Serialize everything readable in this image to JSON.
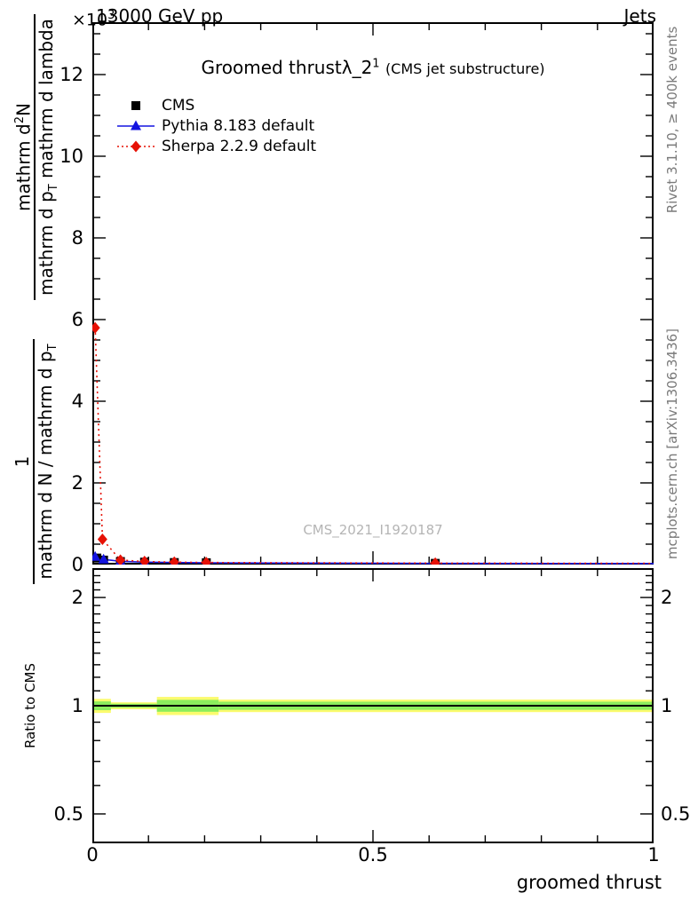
{
  "header": {
    "beam": "13000 GeV pp",
    "category": "Jets"
  },
  "plot": {
    "y_exponent_base": "×10",
    "y_exponent_exp": "3",
    "title": "Groomed thrust",
    "title_symbol": "λ_2",
    "title_sup": "1",
    "title_suffix": "(CMS jet substructure)",
    "watermark": "CMS_2021_I1920187"
  },
  "ylabel": {
    "upper": {
      "num_a": "mathrm d",
      "num_sup": "2",
      "num_b": "N",
      "den_a": "mathrm d p",
      "den_sub": "T",
      "den_b": " mathrm d lambda"
    },
    "lower": {
      "num": "1",
      "den_a": "mathrm d N / mathrm d p",
      "den_sub": "T"
    }
  },
  "side_labels": {
    "rivet": "Rivet 3.1.10, ≥ 400k events",
    "mcplots": "mcplots.cern.ch [arXiv:1306.3436]"
  },
  "ratio_label": "Ratio to CMS",
  "chart_data": {
    "type": "line",
    "title": "Groomed thrust λ_2^1 (CMS jet substructure)",
    "xlabel": "groomed thrust",
    "ylabel": "1/(dN/dp_T) d²N/(dp_T dλ)",
    "xlim": [
      0,
      1
    ],
    "ylim": [
      0,
      13280
    ],
    "y_unit_scale": 1000,
    "grid": false,
    "legend_position": "top-left",
    "x_ticks": [
      0,
      0.5,
      1
    ],
    "x_tick_labels": [
      "0",
      "0.5",
      "1"
    ],
    "y_ticks": [
      0,
      2,
      4,
      6,
      8,
      10,
      12
    ],
    "series": [
      {
        "name": "CMS",
        "marker": "square",
        "color": "#000000",
        "line": null,
        "x": [
          0.008,
          0.02,
          0.05,
          0.093,
          0.146,
          0.203,
          0.611
        ],
        "y": [
          160,
          110,
          75,
          60,
          50,
          45,
          30
        ]
      },
      {
        "name": "Pythia 8.183 default",
        "marker": "triangle",
        "color": "#1414e0",
        "line": "solid",
        "x": [
          0.005,
          0.02,
          0.05,
          0.093,
          0.146,
          0.203,
          0.611
        ],
        "y": [
          190,
          125,
          80,
          60,
          50,
          42,
          28
        ],
        "tail": {
          "x": 1.0,
          "y": 25
        }
      },
      {
        "name": "Sherpa 2.2.9 default",
        "marker": "diamond",
        "color": "#e61105",
        "line": "dotted",
        "x": [
          0.005,
          0.018,
          0.05,
          0.093,
          0.146,
          0.203,
          0.611
        ],
        "y": [
          5800,
          620,
          110,
          75,
          60,
          50,
          35
        ],
        "tail": {
          "x": 1.0,
          "y": 30
        }
      }
    ],
    "ratio": {
      "ylabel": "Ratio to CMS",
      "scale": "log",
      "ylim": [
        0.414,
        2.414
      ],
      "yticks": [
        0.5,
        1,
        2
      ],
      "ytick_labels": [
        "0.5",
        "1",
        "2"
      ],
      "reference_line": 1.0,
      "yellow": "#fbfb6e",
      "green": "#8ced5d",
      "bands": [
        {
          "x0": 0.0,
          "x1": 0.033,
          "yellow": 0.045,
          "green": 0.028
        },
        {
          "x0": 0.033,
          "x1": 0.115,
          "yellow": 0.022,
          "green": 0.013
        },
        {
          "x0": 0.115,
          "x1": 0.225,
          "yellow": 0.058,
          "green": 0.038
        },
        {
          "x0": 0.225,
          "x1": 1.0,
          "yellow": 0.04,
          "green": 0.026
        }
      ]
    }
  }
}
